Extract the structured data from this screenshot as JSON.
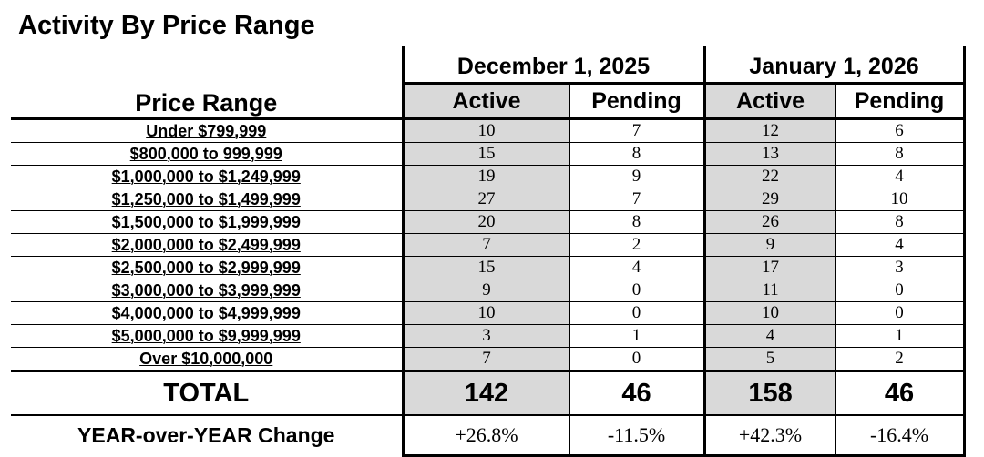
{
  "title": "Activity By Price Range",
  "headers": {
    "price_range": "Price Range",
    "period1": "December 1, 2025",
    "period2": "January 1, 2026",
    "active": "Active",
    "pending": "Pending"
  },
  "rows": [
    {
      "label": "Under $799,999",
      "dec_active": "10",
      "dec_pending": "7",
      "jan_active": "12",
      "jan_pending": "6"
    },
    {
      "label": "$800,000 to 999,999",
      "dec_active": "15",
      "dec_pending": "8",
      "jan_active": "13",
      "jan_pending": "8"
    },
    {
      "label": "$1,000,000 to $1,249,999",
      "dec_active": "19",
      "dec_pending": "9",
      "jan_active": "22",
      "jan_pending": "4"
    },
    {
      "label": "$1,250,000 to $1,499,999",
      "dec_active": "27",
      "dec_pending": "7",
      "jan_active": "29",
      "jan_pending": "10"
    },
    {
      "label": "$1,500,000 to $1,999,999",
      "dec_active": "20",
      "dec_pending": "8",
      "jan_active": "26",
      "jan_pending": "8"
    },
    {
      "label": "$2,000,000 to $2,499,999",
      "dec_active": "7",
      "dec_pending": "2",
      "jan_active": "9",
      "jan_pending": "4"
    },
    {
      "label": "$2,500,000 to $2,999,999",
      "dec_active": "15",
      "dec_pending": "4",
      "jan_active": "17",
      "jan_pending": "3"
    },
    {
      "label": "$3,000,000 to $3,999,999",
      "dec_active": "9",
      "dec_pending": "0",
      "jan_active": "11",
      "jan_pending": "0"
    },
    {
      "label": "$4,000,000 to $4,999,999",
      "dec_active": "10",
      "dec_pending": "0",
      "jan_active": "10",
      "jan_pending": "0"
    },
    {
      "label": "$5,000,000 to $9,999,999",
      "dec_active": "3",
      "dec_pending": "1",
      "jan_active": "4",
      "jan_pending": "1"
    },
    {
      "label": "Over $10,000,000",
      "dec_active": "7",
      "dec_pending": "0",
      "jan_active": "5",
      "jan_pending": "2"
    }
  ],
  "total": {
    "label": "TOTAL",
    "dec_active": "142",
    "dec_pending": "46",
    "jan_active": "158",
    "jan_pending": "46"
  },
  "yoy": {
    "label": "YEAR-over-YEAR Change",
    "dec_active": "+26.8%",
    "dec_pending": "-11.5%",
    "jan_active": "+42.3%",
    "jan_pending": "-16.4%"
  },
  "colors": {
    "shade": "#d9d9d9",
    "text": "#000000"
  }
}
